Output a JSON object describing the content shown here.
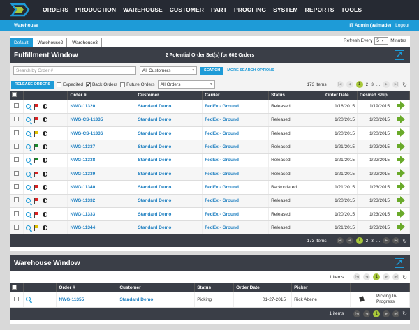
{
  "nav": {
    "items": [
      "ORDERS",
      "PRODUCTION",
      "WAREHOUSE",
      "CUSTOMER",
      "PART",
      "PROOFING",
      "SYSTEM",
      "REPORTS",
      "TOOLS"
    ]
  },
  "bluebar": {
    "section": "Warehouse",
    "user": "IT Admin (aalmade)",
    "logout": "Logout"
  },
  "tabs": [
    "Default",
    "Warehouse2",
    "Warehouse3"
  ],
  "refresh": {
    "label": "Refresh Every",
    "value": "5",
    "unit": "Minutes"
  },
  "fulfillment": {
    "title": "Fulfillment Window",
    "summary": "2 Potential Order Set(s) for 602 Orders",
    "search_placeholder": "Search by Order #",
    "customer_select": "All Customers",
    "search_btn": "SEARCH",
    "more_search": "MORE SEARCH OPTIONS",
    "release_btn": "RELEASE ORDERS",
    "expedited": "Expedited",
    "back_orders": "Back Orders",
    "future_orders": "Future Orders",
    "orders_select": "All Orders",
    "items_count": "173 items",
    "pages": [
      "1",
      "2",
      "3",
      "..."
    ],
    "columns": [
      "Order #",
      "Customer",
      "Carrier",
      "Status",
      "Order Date",
      "Desired Ship"
    ],
    "rows": [
      {
        "order": "NWG-11320",
        "customer": "Standard Demo",
        "carrier": "FedEx - Ground",
        "status": "Released",
        "date": "1/16/2015",
        "ship": "1/19/2015",
        "flag": "red"
      },
      {
        "order": "NWG-CS-11335",
        "customer": "Standard Demo",
        "carrier": "FedEx - Ground",
        "status": "Released",
        "date": "1/20/2015",
        "ship": "1/20/2015",
        "flag": "red"
      },
      {
        "order": "NWG-CS-11336",
        "customer": "Standard Demo",
        "carrier": "FedEx - Ground",
        "status": "Released",
        "date": "1/20/2015",
        "ship": "1/20/2015",
        "flag": "yellow"
      },
      {
        "order": "NWG-11337",
        "customer": "Standard Demo",
        "carrier": "FedEx - Ground",
        "status": "Released",
        "date": "1/21/2015",
        "ship": "1/22/2015",
        "flag": "green"
      },
      {
        "order": "NWG-11338",
        "customer": "Standard Demo",
        "carrier": "FedEx - Ground",
        "status": "Released",
        "date": "1/21/2015",
        "ship": "1/22/2015",
        "flag": "green"
      },
      {
        "order": "NWG-11339",
        "customer": "Standard Demo",
        "carrier": "FedEx - Ground",
        "status": "Released",
        "date": "1/21/2015",
        "ship": "1/22/2015",
        "flag": "red"
      },
      {
        "order": "NWG-11340",
        "customer": "Standard Demo",
        "carrier": "FedEx - Ground",
        "status": "Backordered",
        "date": "1/21/2015",
        "ship": "1/23/2015",
        "flag": "red"
      },
      {
        "order": "NWG-11332",
        "customer": "Standard Demo",
        "carrier": "FedEx - Ground",
        "status": "Released",
        "date": "1/20/2015",
        "ship": "1/23/2015",
        "flag": "red"
      },
      {
        "order": "NWG-11333",
        "customer": "Standard Demo",
        "carrier": "FedEx - Ground",
        "status": "Released",
        "date": "1/20/2015",
        "ship": "1/23/2015",
        "flag": "red"
      },
      {
        "order": "NWG-11344",
        "customer": "Standard Demo",
        "carrier": "FedEx - Ground",
        "status": "Released",
        "date": "1/21/2015",
        "ship": "1/23/2015",
        "flag": "yellow"
      }
    ]
  },
  "warehouse": {
    "title": "Warehouse Window",
    "items_count": "1 items",
    "page": "1",
    "columns": [
      "Order #",
      "Customer",
      "Status",
      "Order Date",
      "Picker",
      "",
      ""
    ],
    "rows": [
      {
        "order": "NWG-11355",
        "customer": "Standard Demo",
        "status": "Picking",
        "date": "01-27-2015",
        "picker": "Rick Aberle",
        "progress": "Picking In-Progress"
      }
    ]
  }
}
